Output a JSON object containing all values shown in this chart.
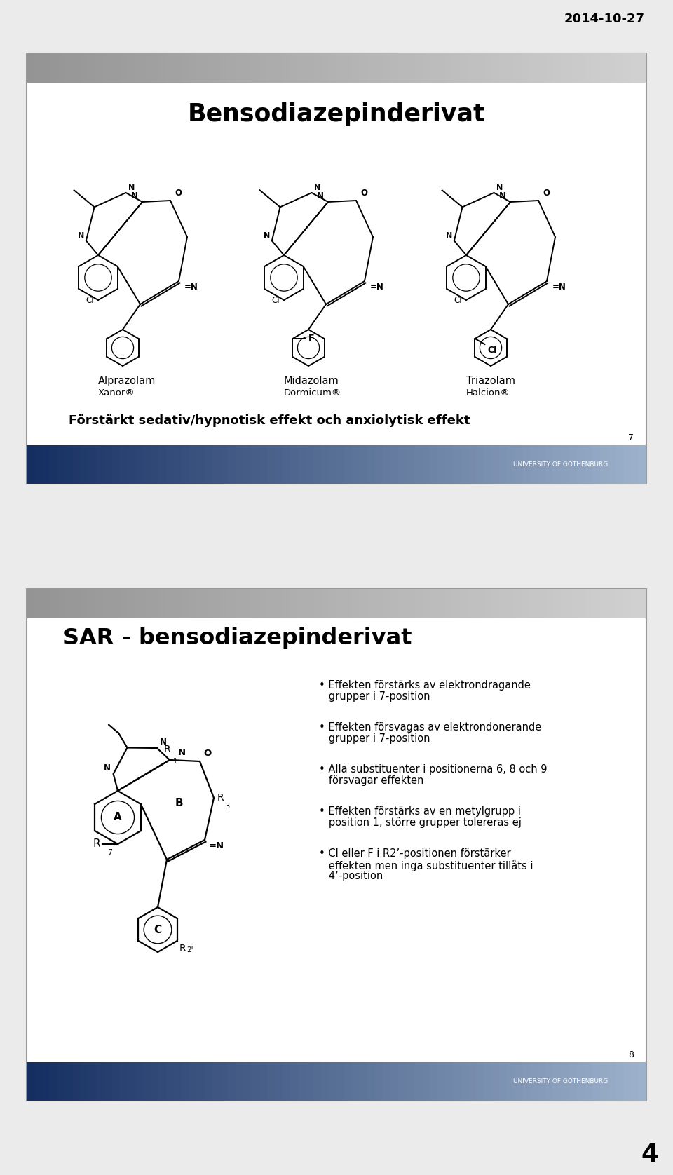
{
  "date_text": "2014-10-27",
  "page_number": "4",
  "bg_color": "#ebebeb",
  "slide1": {
    "title": "Bensodiazepinderivat",
    "footer_text": "Förstärkt sedativ/hypnotisk effekt och anxiolytisk effekt",
    "slide_number": "7",
    "drugs": [
      {
        "name": "Alprazolam",
        "brand": "Xanor®",
        "extra": null
      },
      {
        "name": "Midazolam",
        "brand": "Dormicum®",
        "extra": "F"
      },
      {
        "name": "Triazolam",
        "brand": "Halcion®",
        "extra": "Cl"
      }
    ]
  },
  "slide2": {
    "title": "SAR - bensodiazepinderivat",
    "slide_number": "8",
    "bullets": [
      "Effekten förstärks av elektrondragande\ngrupper i 7-position",
      "Effekten försvagas av elektrondonerande\ngrupper i 7-position",
      "Alla substituenter i positionerna 6, 8 och 9\nförsvagar effekten",
      "Effekten förstärks av en metylgrupp i\nposition 1, större grupper tolereras ej",
      "Cl eller F i R2’-positionen förstärker\neffekten men inga substituenter tillåts i\n4’-position"
    ]
  },
  "univ_text": "UNIVERSITY OF GOTHENBURG"
}
